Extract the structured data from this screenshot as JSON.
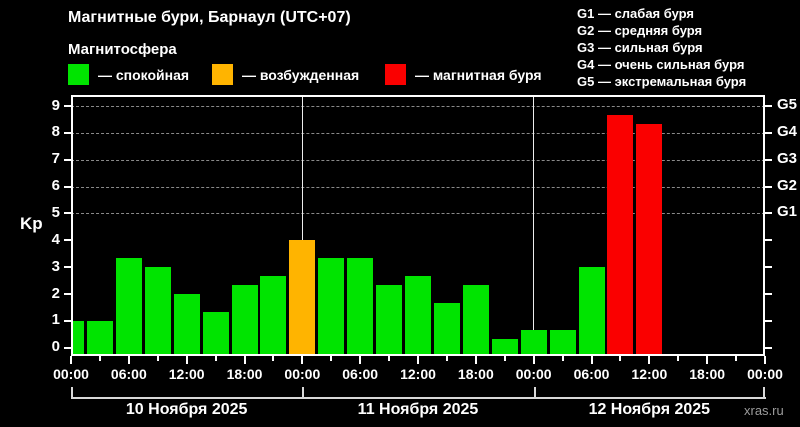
{
  "header": {
    "title": "Магнитные бури, Барнаул (UTC+07)",
    "subtitle": "Магнитосфера",
    "legend": [
      {
        "label": "— спокойная",
        "state": "quiet",
        "color": "#00e400"
      },
      {
        "label": "— возбужденная",
        "state": "unsettled",
        "color": "#ffb400"
      },
      {
        "label": "— магнитная буря",
        "state": "storm",
        "color": "#fa0000"
      }
    ],
    "g_scale_legend": [
      "G1 — слабая буря",
      "G2 — средняя буря",
      "G3 — сильная буря",
      "G4 — очень сильная буря",
      "G5 — экстремальная буря"
    ]
  },
  "chart_data": {
    "type": "bar",
    "title": "Магнитные бури, Барнаул (UTC+07)",
    "ylabel": "Kp",
    "ylim": [
      -0.31,
      9.41
    ],
    "yticks": [
      0,
      1,
      2,
      3,
      4,
      5,
      6,
      7,
      8,
      9
    ],
    "grid_levels": [
      5,
      6,
      7,
      8,
      9
    ],
    "grid": true,
    "right_axis": [
      {
        "kp": 5,
        "label": "G1"
      },
      {
        "kp": 6,
        "label": "G2"
      },
      {
        "kp": 7,
        "label": "G3"
      },
      {
        "kp": 8,
        "label": "G4"
      },
      {
        "kp": 9,
        "label": "G5"
      }
    ],
    "x_major_labels": [
      "00:00",
      "06:00",
      "12:00",
      "18:00"
    ],
    "hours_per_slot": 3,
    "slots_per_day": 8,
    "state_colors": {
      "quiet": "#00e400",
      "unsettled": "#ffb400",
      "storm": "#fa0000"
    },
    "days": [
      {
        "date": "10 Ноября 2025",
        "bars": [
          {
            "time": "00:00",
            "kp": 1.0,
            "state": "quiet"
          },
          {
            "time": "03:00",
            "kp": 1.0,
            "state": "quiet"
          },
          {
            "time": "06:00",
            "kp": 3.33,
            "state": "quiet"
          },
          {
            "time": "09:00",
            "kp": 3.0,
            "state": "quiet"
          },
          {
            "time": "12:00",
            "kp": 2.0,
            "state": "quiet"
          },
          {
            "time": "15:00",
            "kp": 1.33,
            "state": "quiet"
          },
          {
            "time": "18:00",
            "kp": 2.33,
            "state": "quiet"
          },
          {
            "time": "21:00",
            "kp": 2.67,
            "state": "quiet"
          }
        ]
      },
      {
        "date": "11 Ноября 2025",
        "bars": [
          {
            "time": "00:00",
            "kp": 4.0,
            "state": "unsettled"
          },
          {
            "time": "03:00",
            "kp": 3.33,
            "state": "quiet"
          },
          {
            "time": "06:00",
            "kp": 3.33,
            "state": "quiet"
          },
          {
            "time": "09:00",
            "kp": 2.33,
            "state": "quiet"
          },
          {
            "time": "12:00",
            "kp": 2.67,
            "state": "quiet"
          },
          {
            "time": "15:00",
            "kp": 1.67,
            "state": "quiet"
          },
          {
            "time": "18:00",
            "kp": 2.33,
            "state": "quiet"
          },
          {
            "time": "21:00",
            "kp": 0.33,
            "state": "quiet"
          }
        ]
      },
      {
        "date": "12 Ноября 2025",
        "bars": [
          {
            "time": "00:00",
            "kp": 0.67,
            "state": "quiet"
          },
          {
            "time": "03:00",
            "kp": 0.67,
            "state": "quiet"
          },
          {
            "time": "06:00",
            "kp": 3.0,
            "state": "quiet"
          },
          {
            "time": "09:00",
            "kp": 8.67,
            "state": "storm"
          },
          {
            "time": "12:00",
            "kp": 8.33,
            "state": "storm"
          }
        ]
      }
    ]
  },
  "footer": {
    "watermark": "xras.ru"
  }
}
